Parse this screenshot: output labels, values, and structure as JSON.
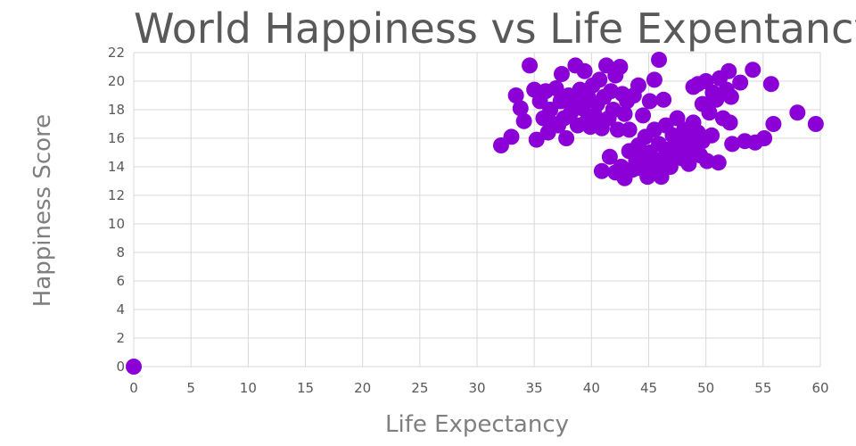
{
  "chart_data": {
    "type": "scatter",
    "title": "World Happiness vs Life Expentancy",
    "xlabel": "Life Expectancy",
    "ylabel": "Happiness Score",
    "xlim": [
      0,
      60
    ],
    "ylim": [
      0,
      22
    ],
    "x_ticks": [
      0,
      5,
      10,
      15,
      20,
      25,
      30,
      35,
      40,
      45,
      50,
      55,
      60
    ],
    "y_ticks": [
      0,
      2,
      4,
      6,
      8,
      10,
      12,
      14,
      16,
      18,
      20,
      22
    ],
    "grid": true,
    "legend": "none",
    "marker_color": "#8B00D6",
    "series": [
      {
        "points": [
          [
            0,
            0
          ],
          [
            32.1,
            15.5
          ],
          [
            33.0,
            16.1
          ],
          [
            33.4,
            19.0
          ],
          [
            33.8,
            18.1
          ],
          [
            34.1,
            17.2
          ],
          [
            34.6,
            21.1
          ],
          [
            35.0,
            19.4
          ],
          [
            35.2,
            15.9
          ],
          [
            35.5,
            18.6
          ],
          [
            35.8,
            17.4
          ],
          [
            36.0,
            19.3
          ],
          [
            36.2,
            16.4
          ],
          [
            36.4,
            18.0
          ],
          [
            36.7,
            17.0
          ],
          [
            36.9,
            19.5
          ],
          [
            37.1,
            16.9
          ],
          [
            37.3,
            18.6
          ],
          [
            37.4,
            20.5
          ],
          [
            37.6,
            17.4
          ],
          [
            37.8,
            16.0
          ],
          [
            38.0,
            19.0
          ],
          [
            38.2,
            17.8
          ],
          [
            38.4,
            18.7
          ],
          [
            38.6,
            21.1
          ],
          [
            38.8,
            16.9
          ],
          [
            39.0,
            19.4
          ],
          [
            39.2,
            18.1
          ],
          [
            39.4,
            20.7
          ],
          [
            39.5,
            17.1
          ],
          [
            39.7,
            18.9
          ],
          [
            39.9,
            16.8
          ],
          [
            40.1,
            19.7
          ],
          [
            40.3,
            17.6
          ],
          [
            40.5,
            18.4
          ],
          [
            40.7,
            20.1
          ],
          [
            40.9,
            16.7
          ],
          [
            41.1,
            18.9
          ],
          [
            41.3,
            21.1
          ],
          [
            41.5,
            17.4
          ],
          [
            41.7,
            19.3
          ],
          [
            41.9,
            18.0
          ],
          [
            42.1,
            20.4
          ],
          [
            42.3,
            16.6
          ],
          [
            42.5,
            21.0
          ],
          [
            42.7,
            19.1
          ],
          [
            42.9,
            17.7
          ],
          [
            43.1,
            18.6
          ],
          [
            43.3,
            16.6
          ],
          [
            43.7,
            19.0
          ],
          [
            44.1,
            19.7
          ],
          [
            44.5,
            17.6
          ],
          [
            45.1,
            18.6
          ],
          [
            45.5,
            20.1
          ],
          [
            45.9,
            21.5
          ],
          [
            46.3,
            18.7
          ],
          [
            40.9,
            13.7
          ],
          [
            41.6,
            14.7
          ],
          [
            42.1,
            13.6
          ],
          [
            42.6,
            14.0
          ],
          [
            42.9,
            13.2
          ],
          [
            43.3,
            15.1
          ],
          [
            43.6,
            13.8
          ],
          [
            43.9,
            14.4
          ],
          [
            44.1,
            15.5
          ],
          [
            44.3,
            13.9
          ],
          [
            44.5,
            14.8
          ],
          [
            44.7,
            16.1
          ],
          [
            44.9,
            13.3
          ],
          [
            45.1,
            15.0
          ],
          [
            45.3,
            14.3
          ],
          [
            45.5,
            16.6
          ],
          [
            45.7,
            13.9
          ],
          [
            45.9,
            15.6
          ],
          [
            46.1,
            13.3
          ],
          [
            46.3,
            14.6
          ],
          [
            46.5,
            16.9
          ],
          [
            46.7,
            15.2
          ],
          [
            46.9,
            14.0
          ],
          [
            47.1,
            16.2
          ],
          [
            47.3,
            14.9
          ],
          [
            47.5,
            17.4
          ],
          [
            47.7,
            15.6
          ],
          [
            47.9,
            14.6
          ],
          [
            48.1,
            16.6
          ],
          [
            48.3,
            15.3
          ],
          [
            48.5,
            14.2
          ],
          [
            48.7,
            16.0
          ],
          [
            48.9,
            17.1
          ],
          [
            49.1,
            15.0
          ],
          [
            49.3,
            16.4
          ],
          [
            49.5,
            14.8
          ],
          [
            49.7,
            15.8
          ],
          [
            50.1,
            14.4
          ],
          [
            50.5,
            16.2
          ],
          [
            51.1,
            14.3
          ],
          [
            48.9,
            19.6
          ],
          [
            49.3,
            19.8
          ],
          [
            49.7,
            18.4
          ],
          [
            50.0,
            20.0
          ],
          [
            50.3,
            17.8
          ],
          [
            50.6,
            19.2
          ],
          [
            50.9,
            18.7
          ],
          [
            51.2,
            20.2
          ],
          [
            51.5,
            17.4
          ],
          [
            51.8,
            19.4
          ],
          [
            52.0,
            20.7
          ],
          [
            52.2,
            18.9
          ],
          [
            52.1,
            17.1
          ],
          [
            52.3,
            15.6
          ],
          [
            53.0,
            19.9
          ],
          [
            53.4,
            15.8
          ],
          [
            54.1,
            20.8
          ],
          [
            54.3,
            15.7
          ],
          [
            55.1,
            16.0
          ],
          [
            55.7,
            19.8
          ],
          [
            55.9,
            17.0
          ],
          [
            58.0,
            17.8
          ],
          [
            59.6,
            17.0
          ]
        ]
      }
    ]
  }
}
